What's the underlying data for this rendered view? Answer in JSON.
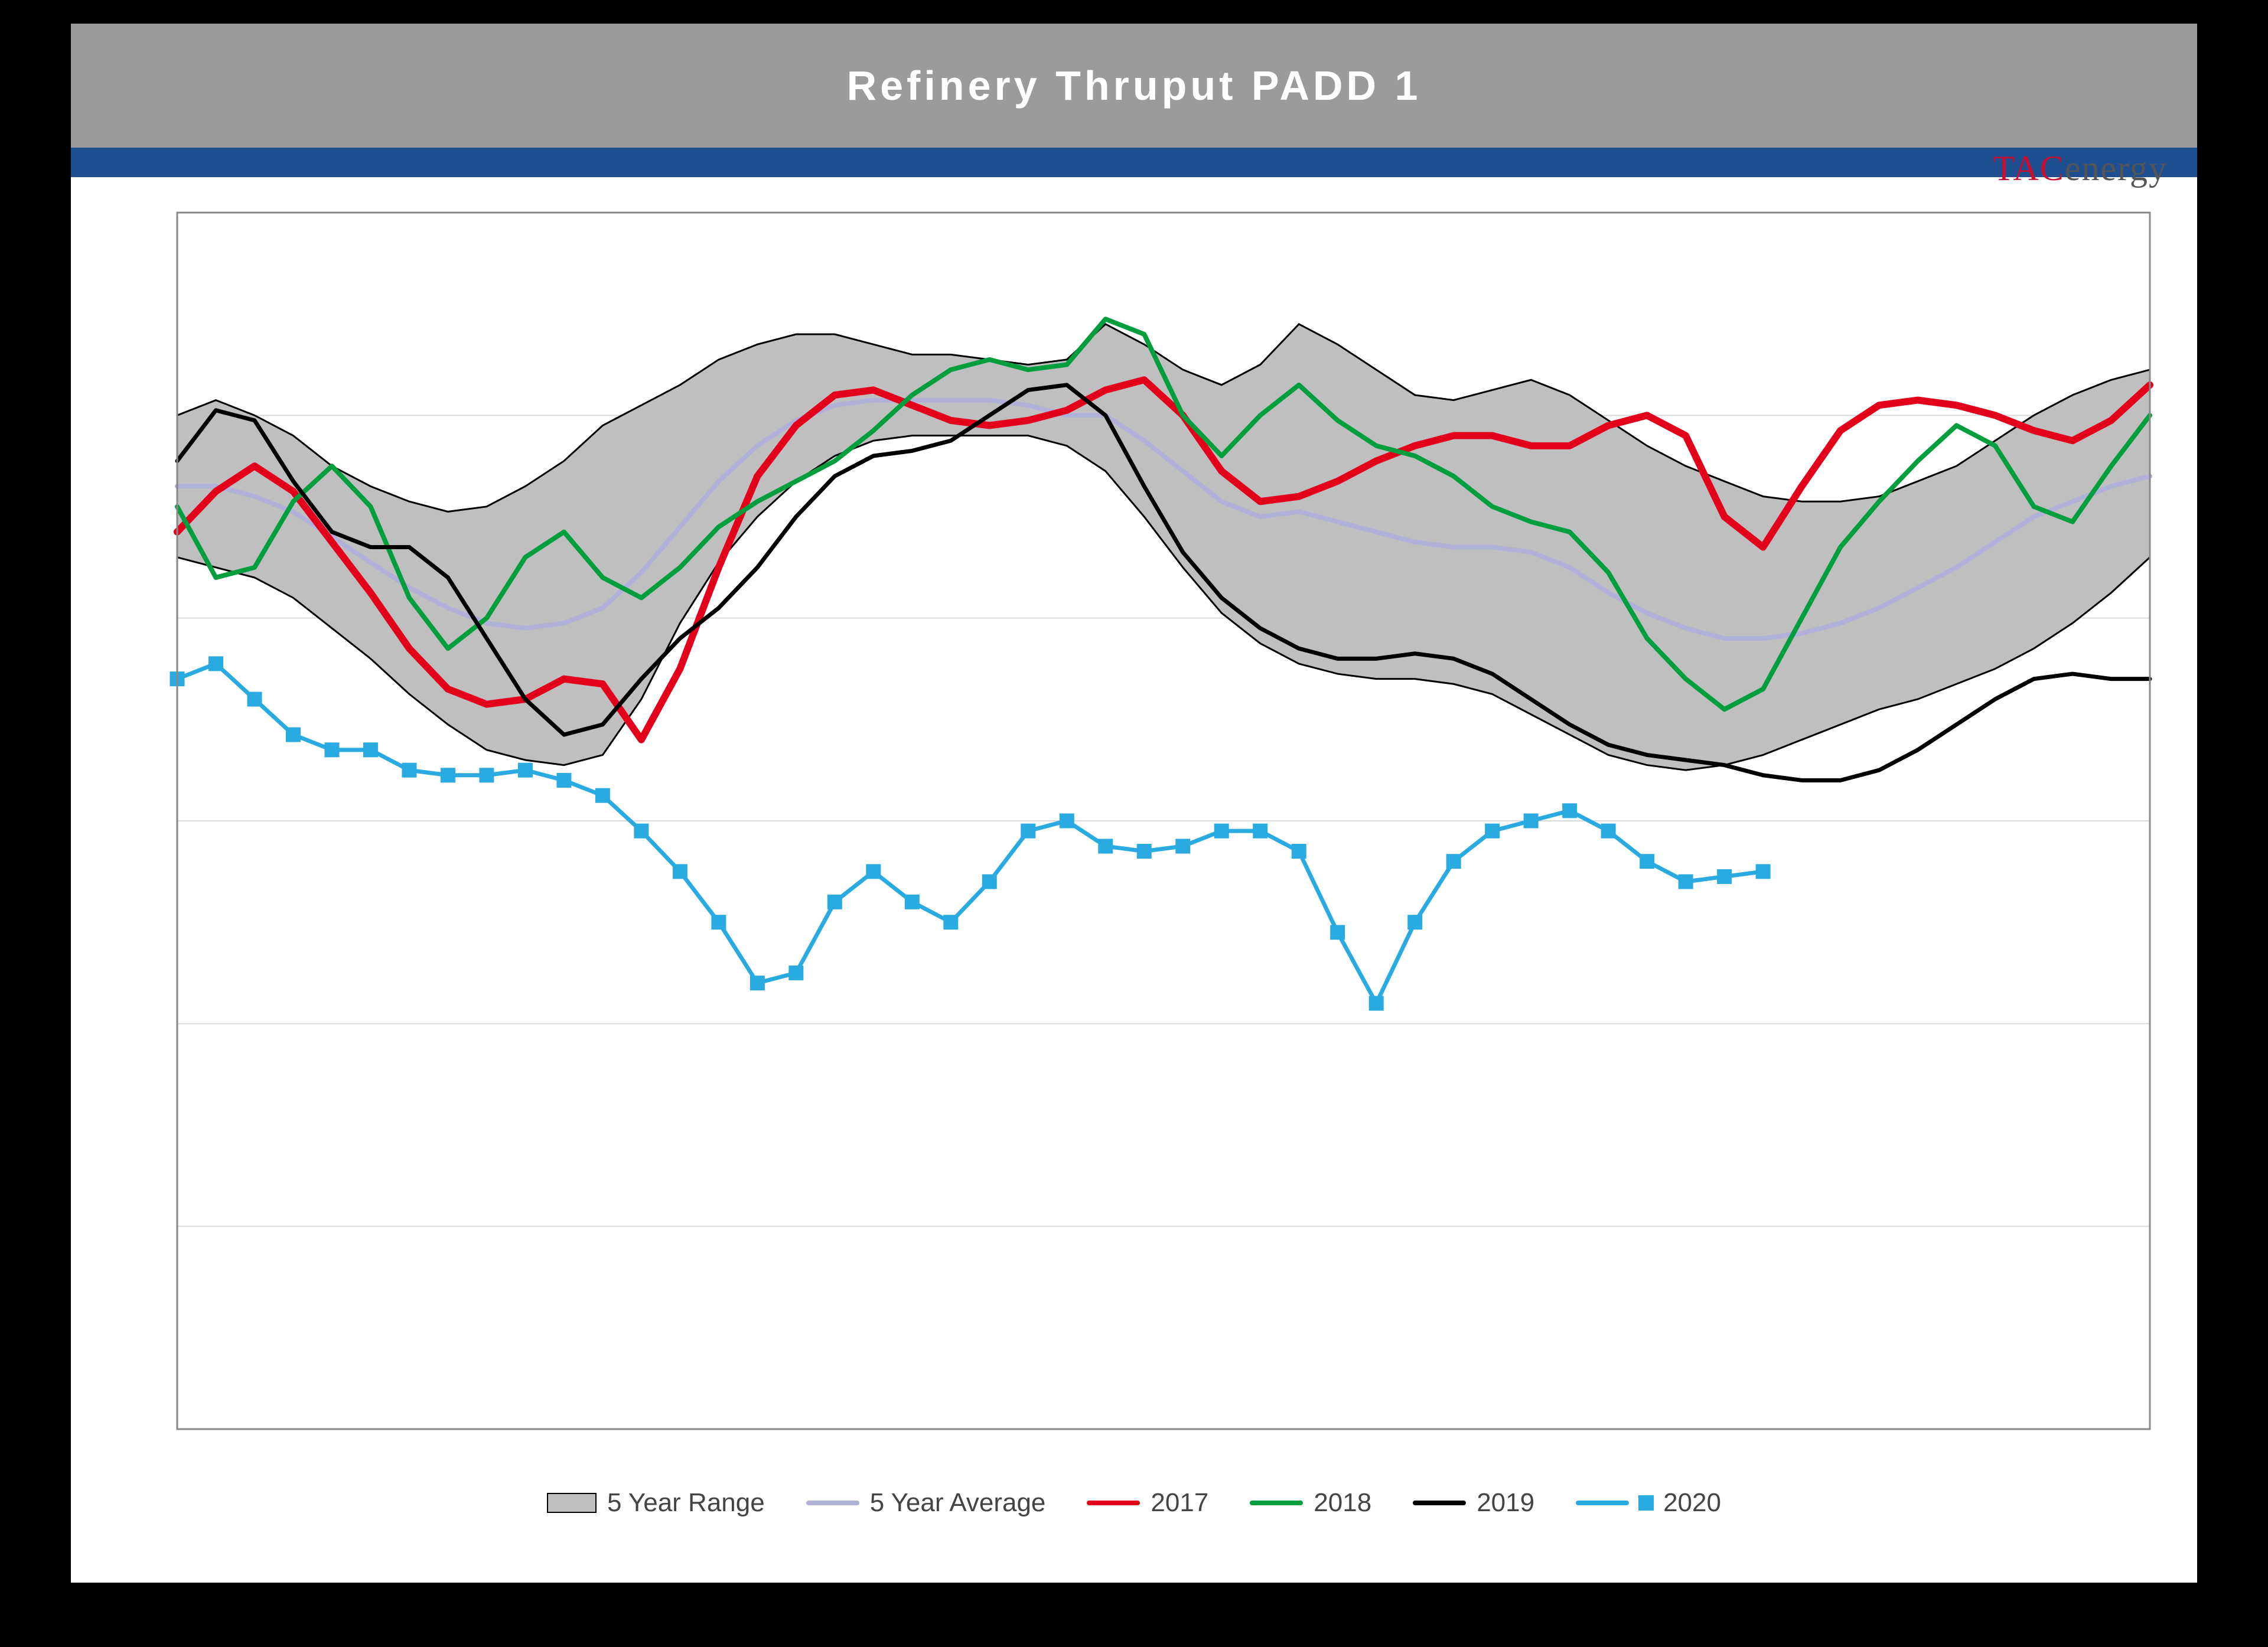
{
  "header": {
    "title": "Refinery Thruput PADD 1",
    "logo_tac": "TAC",
    "logo_energy": "energy"
  },
  "chart": {
    "type": "line",
    "background_color": "#ffffff",
    "plot_border_color": "#888888",
    "grid_color": "#d9d9d9",
    "xlim": [
      1,
      52
    ],
    "ylim": [
      200,
      1400
    ],
    "ytick_step": 200,
    "title_fontsize": 70,
    "legend_fontsize": 44,
    "range_band": {
      "color": "#bfbfbf",
      "upper": [
        1200,
        1215,
        1200,
        1180,
        1150,
        1130,
        1115,
        1105,
        1110,
        1130,
        1155,
        1190,
        1210,
        1230,
        1255,
        1270,
        1280,
        1280,
        1270,
        1260,
        1260,
        1255,
        1250,
        1255,
        1290,
        1270,
        1245,
        1230,
        1250,
        1290,
        1270,
        1245,
        1220,
        1215,
        1225,
        1235,
        1220,
        1195,
        1170,
        1150,
        1135,
        1120,
        1115,
        1115,
        1120,
        1135,
        1150,
        1175,
        1200,
        1220,
        1235,
        1245
      ],
      "lower": [
        1060,
        1050,
        1040,
        1020,
        990,
        960,
        925,
        895,
        870,
        860,
        855,
        865,
        920,
        995,
        1055,
        1100,
        1135,
        1160,
        1175,
        1180,
        1180,
        1180,
        1180,
        1170,
        1145,
        1100,
        1050,
        1005,
        975,
        955,
        945,
        940,
        940,
        935,
        925,
        905,
        885,
        865,
        855,
        850,
        855,
        865,
        880,
        895,
        910,
        920,
        935,
        950,
        970,
        995,
        1025,
        1060
      ]
    },
    "series": [
      {
        "name": "5 Year Average",
        "color": "#b0b0d8",
        "width": 8,
        "marker": "none",
        "values": [
          1130,
          1130,
          1120,
          1105,
          1080,
          1055,
          1030,
          1010,
          995,
          990,
          995,
          1010,
          1045,
          1090,
          1135,
          1170,
          1195,
          1210,
          1215,
          1215,
          1215,
          1215,
          1210,
          1200,
          1200,
          1175,
          1145,
          1115,
          1100,
          1105,
          1095,
          1085,
          1075,
          1070,
          1070,
          1065,
          1050,
          1025,
          1005,
          990,
          980,
          980,
          985,
          995,
          1010,
          1030,
          1050,
          1075,
          1100,
          1115,
          1130,
          1140
        ]
      },
      {
        "name": "2017",
        "color": "#e3001b",
        "width": 12,
        "marker": "none",
        "values": [
          1085,
          1125,
          1150,
          1125,
          1075,
          1025,
          970,
          930,
          915,
          920,
          940,
          935,
          880,
          950,
          1050,
          1140,
          1190,
          1220,
          1225,
          1210,
          1195,
          1190,
          1195,
          1205,
          1225,
          1235,
          1200,
          1145,
          1115,
          1120,
          1135,
          1155,
          1170,
          1180,
          1180,
          1170,
          1170,
          1190,
          1200,
          1180,
          1100,
          1070,
          1130,
          1185,
          1210,
          1215,
          1210,
          1200,
          1185,
          1175,
          1195,
          1230
        ]
      },
      {
        "name": "2018",
        "color": "#009e3d",
        "width": 8,
        "marker": "none",
        "values": [
          1110,
          1040,
          1050,
          1115,
          1150,
          1110,
          1020,
          970,
          1000,
          1060,
          1085,
          1040,
          1020,
          1050,
          1090,
          1115,
          1135,
          1155,
          1185,
          1220,
          1245,
          1255,
          1245,
          1250,
          1295,
          1280,
          1200,
          1160,
          1200,
          1230,
          1195,
          1170,
          1160,
          1140,
          1110,
          1095,
          1085,
          1045,
          980,
          940,
          910,
          930,
          1000,
          1070,
          1115,
          1155,
          1190,
          1170,
          1110,
          1095,
          1150,
          1200
        ]
      },
      {
        "name": "2019",
        "color": "#000000",
        "width": 7,
        "marker": "none",
        "values": [
          1155,
          1205,
          1195,
          1135,
          1085,
          1070,
          1070,
          1040,
          980,
          920,
          885,
          895,
          940,
          980,
          1010,
          1050,
          1100,
          1140,
          1160,
          1165,
          1175,
          1200,
          1225,
          1230,
          1200,
          1130,
          1065,
          1020,
          990,
          970,
          960,
          960,
          965,
          960,
          945,
          920,
          895,
          875,
          865,
          860,
          855,
          845,
          840,
          840,
          850,
          870,
          895,
          920,
          940,
          945,
          940,
          940
        ]
      },
      {
        "name": "2020",
        "color": "#29abe2",
        "width": 7,
        "marker": "square",
        "values": [
          940,
          955,
          920,
          885,
          870,
          870,
          850,
          845,
          845,
          850,
          840,
          825,
          790,
          750,
          700,
          640,
          650,
          720,
          750,
          720,
          700,
          740,
          790,
          800,
          775,
          770,
          775,
          790,
          790,
          770,
          690,
          620,
          700,
          760,
          790,
          800,
          810,
          790,
          760,
          740,
          745,
          750
        ]
      }
    ],
    "legend": [
      {
        "label": "5 Year Range",
        "kind": "range",
        "color": "#bfbfbf"
      },
      {
        "label": "5 Year Average",
        "kind": "line",
        "color": "#b0b0d8"
      },
      {
        "label": "2017",
        "kind": "line",
        "color": "#e3001b"
      },
      {
        "label": "2018",
        "kind": "line",
        "color": "#009e3d"
      },
      {
        "label": "2019",
        "kind": "line",
        "color": "#000000"
      },
      {
        "label": "2020",
        "kind": "line-marker",
        "color": "#29abe2"
      }
    ]
  }
}
